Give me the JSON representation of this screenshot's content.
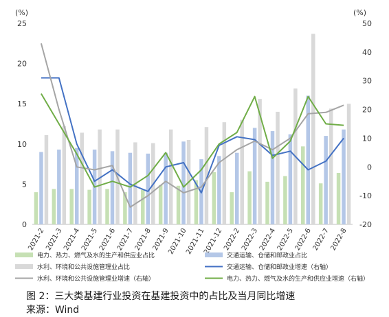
{
  "caption": {
    "title": "图 2：三大类基建行业投资在基建投资中的占比及当月同比增速",
    "source": "来源：Wind"
  },
  "chart_data": {
    "type": "bar",
    "left_axis": {
      "unit_label": "(%)",
      "min": 0,
      "max": 25,
      "ticks": [
        0,
        5,
        10,
        15,
        20,
        25
      ]
    },
    "right_axis": {
      "unit_label": "(%)",
      "min": -20,
      "max": 50,
      "ticks": [
        -20,
        -10,
        0,
        10,
        20,
        30,
        40,
        50
      ]
    },
    "categories": [
      "2021-2",
      "2021-3",
      "2021-4",
      "2021-5",
      "2021-6",
      "2021-7",
      "2021-8",
      "2021-9",
      "2021-10",
      "2021-11",
      "2021-12",
      "2022-2",
      "2022-3",
      "2022-4",
      "2022-5",
      "2022-6",
      "2022-7",
      "2022-8"
    ],
    "bar_series": [
      {
        "name": "电力、热力、燃气及水的生产和供应业占比",
        "color": "#c6e0b4",
        "axis": "left",
        "values": [
          4.0,
          4.4,
          4.4,
          4.3,
          4.4,
          4.0,
          4.3,
          4.9,
          4.8,
          5.5,
          6.5,
          4.0,
          6.6,
          5.3,
          6.0,
          9.7,
          5.1,
          6.4
        ]
      },
      {
        "name": "交通运输、仓储和邮政业占比",
        "color": "#b4c7e7",
        "axis": "left",
        "values": [
          9.0,
          9.3,
          9.5,
          9.3,
          9.1,
          8.9,
          8.8,
          8.9,
          10.3,
          8.1,
          8.5,
          8.9,
          12.0,
          11.6,
          11.2,
          16.0,
          11.0,
          11.8
        ]
      },
      {
        "name": "水利、环境和公共设施管理业占比",
        "color": "#d9d9d9",
        "axis": "left",
        "values": [
          11.1,
          12.2,
          11.4,
          11.8,
          11.8,
          10.2,
          10.1,
          11.8,
          10.5,
          12.1,
          12.7,
          13.0,
          15.6,
          14.0,
          16.9,
          23.7,
          14.4,
          15.0
        ]
      }
    ],
    "line_series": [
      {
        "name": "交通运输、仓储和邮政业增速（右轴）",
        "color": "#4472c4",
        "axis": "right",
        "values": [
          31.0,
          31.0,
          8.0,
          -5.0,
          -1.0,
          -6.0,
          -8.5,
          0.0,
          1.5,
          -9.0,
          7.5,
          10.5,
          9.5,
          4.0,
          5.5,
          -1.0,
          2.0,
          10.0
        ]
      },
      {
        "name": "水利、环境和公共设施管理业增速（右轴）",
        "color": "#a5a5a5",
        "axis": "right",
        "values": [
          43.0,
          20.0,
          0.0,
          -1.0,
          0.5,
          -14.0,
          -10.0,
          -5.0,
          -9.0,
          -7.0,
          1.5,
          6.0,
          9.0,
          6.0,
          10.0,
          18.5,
          19.0,
          21.5
        ]
      },
      {
        "name": "电力、热力、燃气及水的生产和供应业增速（右轴）",
        "color": "#70ad47",
        "axis": "right",
        "values": [
          25.5,
          15.0,
          4.5,
          -7.0,
          -5.0,
          -7.0,
          -3.0,
          5.0,
          -7.0,
          -1.0,
          8.0,
          12.0,
          24.5,
          3.0,
          9.0,
          24.5,
          15.0,
          14.5
        ]
      }
    ],
    "legend_position": "bottom",
    "grid": false
  }
}
